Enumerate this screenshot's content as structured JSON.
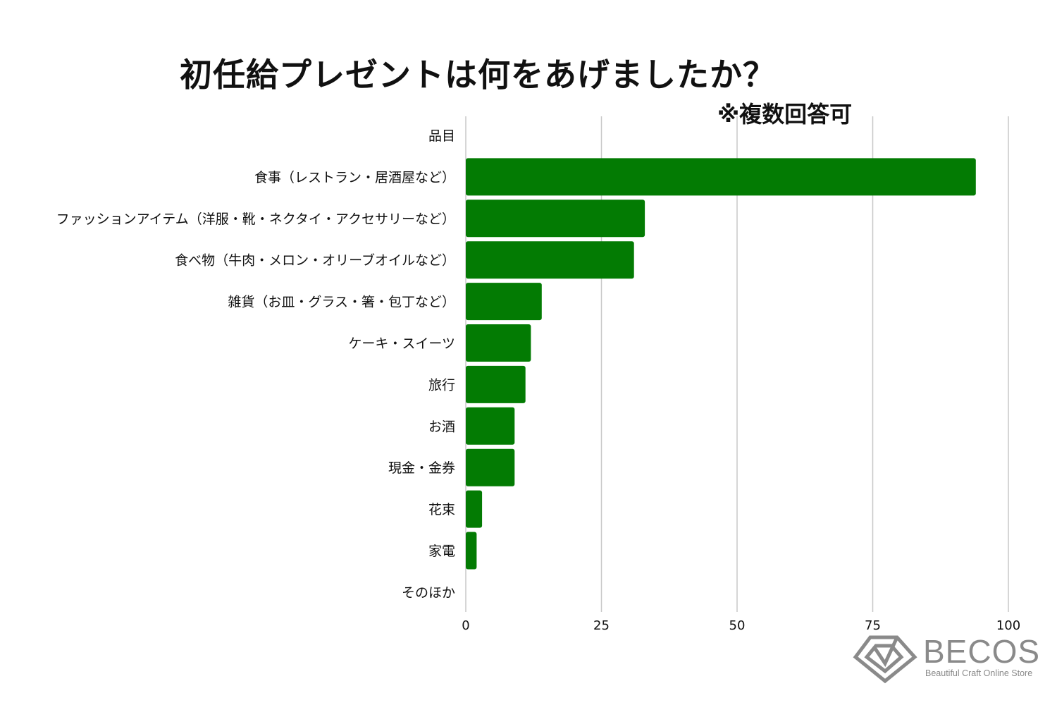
{
  "chart_data": {
    "type": "bar",
    "orientation": "horizontal",
    "title": "初任給プレゼントは何をあげましたか？",
    "subtitle": "※複数回答可",
    "category_header": "品目",
    "categories": [
      "食事（レストラン・居酒屋など）",
      "ファッションアイテム（洋服・靴・ネクタイ・アクセサリーなど）",
      "食べ物（牛肉・メロン・オリーブオイルなど）",
      "雑貨（お皿・グラス・箸・包丁など）",
      "ケーキ・スイーツ",
      "旅行",
      "お酒",
      "現金・金券",
      "花束",
      "家電",
      "そのほか"
    ],
    "values": [
      94,
      33,
      31,
      14,
      12,
      11,
      9,
      9,
      3,
      2,
      0
    ],
    "xlim": [
      0,
      100
    ],
    "xticks": [
      "0",
      "25",
      "50",
      "75",
      "100"
    ],
    "grid": true,
    "bar_color": "#037b03",
    "grid_color": "#c8c8c8"
  },
  "logo": {
    "name": "BECOS",
    "tagline": "Beautiful Craft Online Store",
    "color": "#8a8a8a"
  }
}
